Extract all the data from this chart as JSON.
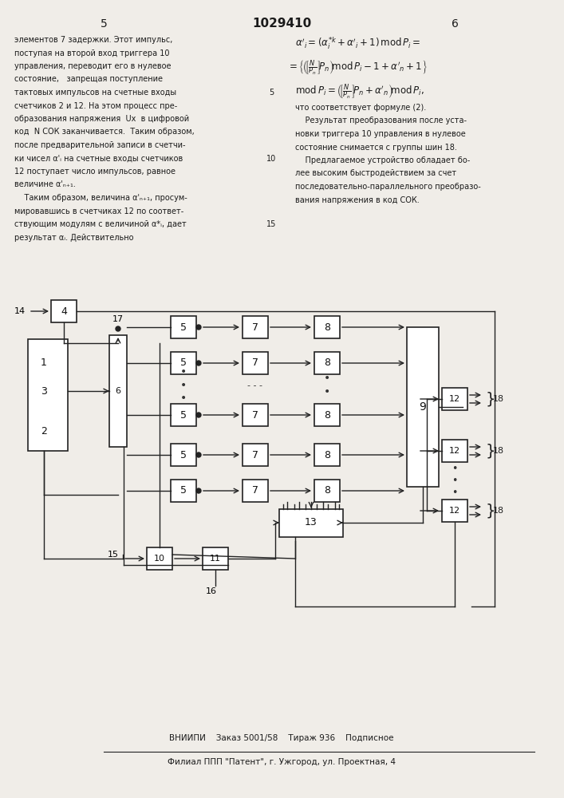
{
  "title": "1029410",
  "page_left": "5",
  "page_right": "6",
  "bg_color": "#f0ede8",
  "text_color": "#1a1a1a",
  "footer_line1": "ВНИИПИ    Заказ 5001/58    Тираж 936    Подписное",
  "footer_line2": "Филиал ППП \"Патент\", г. Ужгород, ул. Проектная, 4",
  "left_text": [
    "элементов 7 задержки. Этот импульс,",
    "поступая на второй вход триггера 10",
    "управления, переводит его в нулевое",
    "состояние,   запрещая поступление",
    "тактовых импульсов на счетные входы",
    "счетчиков 2 и 12. На этом процесс пре-",
    "образования напряжения  Uх  в цифровой",
    "код  N СОК заканчивается.  Таким образом,",
    "после предварительной записи в счетчи-",
    "ки чисел α'ᵢ на счетные входы счетчиков",
    "12 поступает число импульсов, равное",
    "величине α'ₙ₊₁.",
    "    Таким образом, величина α'ₙ₊₁, просум-",
    "мировавшись в счетчиках 12 по соответ-",
    "ствующим модулям с величиной α*ᵢ, дает",
    "результат αᵢ. Действительно"
  ],
  "right_text": [
    "что соответствует формуле (2).",
    "    Результат преобразования после уста-",
    "новки триггера 10 управления в нулевое",
    "состояние снимается с группы шин 18.",
    "    Предлагаемое устройство обладает бо-",
    "лее высоким быстродействием за счет",
    "последовательно-параллельного преобразо-",
    "вания напряжения в код СОК."
  ],
  "line_number_5": "5",
  "line_number_10": "10",
  "line_number_15": "15",
  "formula_lines": [
    "α'ᵢ = (α*ᵢ + α'ᵢ + 1) mod Pᵢ =",
    "= {(([N/Pₙ]Pₙ) mod Pᵢ - 1 + α'ₙ + 1}",
    "mod Pᵢ = (([N/Pₙ]Pₙ + α'ₙ) mod Pᵢ,"
  ]
}
